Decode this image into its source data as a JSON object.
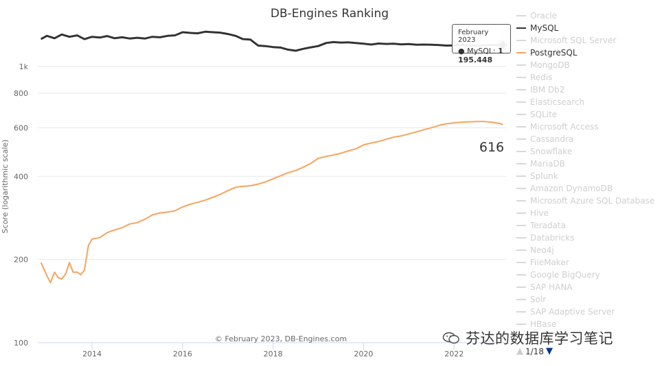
{
  "chart_data": {
    "type": "line",
    "title": "DB-Engines Ranking",
    "ylabel": "Score (logarithmic scale)",
    "xlabel": "",
    "yscale": "log",
    "ylim": [
      100,
      1400
    ],
    "x_range": [
      2012.8,
      2023.15
    ],
    "x_ticks": [
      2014,
      2016,
      2018,
      2020,
      2022
    ],
    "y_ticks": [
      100,
      200,
      400,
      600,
      800,
      1000
    ],
    "y_tick_labels": [
      "100",
      "200",
      "400",
      "600",
      "800",
      "1k"
    ],
    "credits": "© February 2023, DB-Engines.com",
    "series": [
      {
        "name": "MySQL",
        "color": "#333333",
        "x": [
          2012.87,
          2013.0,
          2013.17,
          2013.33,
          2013.5,
          2013.67,
          2013.83,
          2014.0,
          2014.17,
          2014.33,
          2014.5,
          2014.67,
          2014.83,
          2015.0,
          2015.17,
          2015.33,
          2015.5,
          2015.67,
          2015.83,
          2016.0,
          2016.17,
          2016.33,
          2016.5,
          2016.67,
          2016.83,
          2017.0,
          2017.17,
          2017.33,
          2017.5,
          2017.67,
          2017.83,
          2018.0,
          2018.17,
          2018.33,
          2018.5,
          2018.67,
          2018.83,
          2019.0,
          2019.17,
          2019.33,
          2019.5,
          2019.67,
          2019.83,
          2020.0,
          2020.17,
          2020.33,
          2020.5,
          2020.67,
          2020.83,
          2021.0,
          2021.17,
          2021.33,
          2021.5,
          2021.67,
          2021.83,
          2022.0,
          2022.17,
          2022.33,
          2022.5,
          2022.67,
          2022.83,
          2023.0,
          2023.08
        ],
        "values": [
          1255,
          1290,
          1265,
          1305,
          1280,
          1295,
          1255,
          1280,
          1272,
          1288,
          1265,
          1275,
          1262,
          1270,
          1262,
          1280,
          1275,
          1290,
          1295,
          1330,
          1322,
          1318,
          1335,
          1330,
          1325,
          1310,
          1290,
          1256,
          1250,
          1190,
          1185,
          1175,
          1170,
          1150,
          1140,
          1158,
          1172,
          1185,
          1215,
          1225,
          1220,
          1222,
          1216,
          1208,
          1200,
          1210,
          1206,
          1208,
          1202,
          1205,
          1198,
          1200,
          1198,
          1195,
          1190,
          1192,
          1198,
          1190,
          1190,
          1193,
          1195,
          1195,
          1195.448
        ]
      },
      {
        "name": "PostgreSQL",
        "color": "#f7a35c",
        "x": [
          2012.87,
          2013.0,
          2013.08,
          2013.17,
          2013.25,
          2013.33,
          2013.42,
          2013.5,
          2013.58,
          2013.67,
          2013.75,
          2013.83,
          2013.92,
          2014.0,
          2014.17,
          2014.33,
          2014.5,
          2014.67,
          2014.83,
          2015.0,
          2015.17,
          2015.33,
          2015.5,
          2015.67,
          2015.83,
          2016.0,
          2016.17,
          2016.33,
          2016.5,
          2016.67,
          2016.83,
          2017.0,
          2017.17,
          2017.33,
          2017.5,
          2017.67,
          2017.83,
          2018.0,
          2018.17,
          2018.33,
          2018.5,
          2018.67,
          2018.83,
          2019.0,
          2019.17,
          2019.33,
          2019.5,
          2019.67,
          2019.83,
          2020.0,
          2020.17,
          2020.33,
          2020.5,
          2020.67,
          2020.83,
          2021.0,
          2021.17,
          2021.33,
          2021.5,
          2021.67,
          2021.83,
          2022.0,
          2022.17,
          2022.33,
          2022.5,
          2022.67,
          2022.83,
          2023.0,
          2023.08
        ],
        "values": [
          195,
          175,
          165,
          180,
          172,
          170,
          178,
          195,
          180,
          180,
          176,
          183,
          225,
          237,
          240,
          250,
          256,
          261,
          269,
          272,
          280,
          290,
          295,
          297,
          300,
          310,
          317,
          322,
          328,
          336,
          344,
          355,
          365,
          368,
          370,
          375,
          382,
          392,
          402,
          412,
          420,
          432,
          445,
          465,
          472,
          478,
          485,
          495,
          503,
          520,
          528,
          535,
          545,
          555,
          560,
          570,
          580,
          590,
          600,
          612,
          620,
          625,
          628,
          630,
          632,
          632,
          628,
          622,
          616
        ]
      }
    ],
    "tooltip": {
      "date": "February 2023",
      "series": "MySQL",
      "value": "1 195.448"
    },
    "end_label": "616"
  },
  "legend": {
    "items": [
      "Oracle",
      "MySQL",
      "Microsoft SQL Server",
      "PostgreSQL",
      "MongoDB",
      "Redis",
      "IBM Db2",
      "Elasticsearch",
      "SQLite",
      "Microsoft Access",
      "Cassandra",
      "Snowflake",
      "MariaDB",
      "Splunk",
      "Amazon DynamoDB",
      "Microsoft Azure SQL Database",
      "Hive",
      "Teradata",
      "Databricks",
      "Neo4j",
      "FileMaker",
      "Google BigQuery",
      "SAP HANA",
      "Solr",
      "SAP Adaptive Server",
      "HBase"
    ],
    "active": {
      "MySQL": "active-dark",
      "PostgreSQL": "active-orange"
    },
    "pager": "1/18"
  },
  "watermark": "芬达的数据库学习笔记"
}
